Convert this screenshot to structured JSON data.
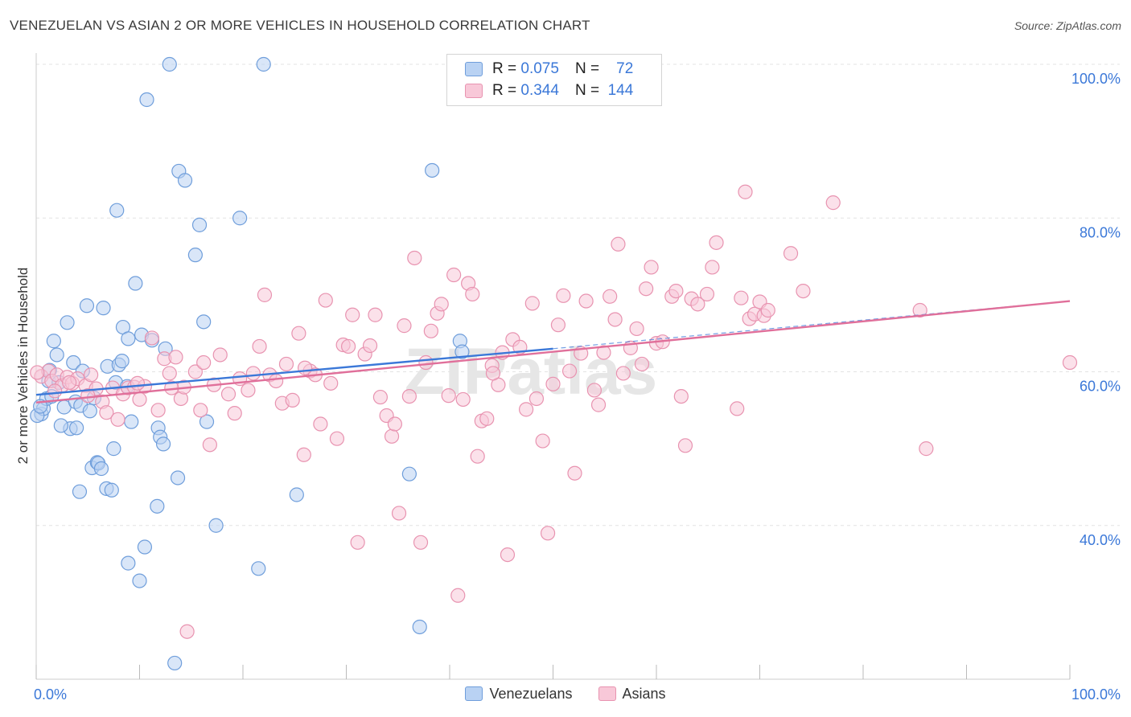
{
  "title": "VENEZUELAN VS ASIAN 2 OR MORE VEHICLES IN HOUSEHOLD CORRELATION CHART",
  "source": "Source: ZipAtlas.com",
  "watermark": "ZIPatlas",
  "legend_top": {
    "rows": [
      {
        "r_label": "R =",
        "r_value": "0.075",
        "n_label": "N =",
        "n_value": "72"
      },
      {
        "r_label": "R =",
        "r_value": "0.344",
        "n_label": "N =",
        "n_value": "144"
      }
    ]
  },
  "legend_bottom": [
    "Venezuelans",
    "Asians"
  ],
  "colors": {
    "venezuelans_fill": "#b9d2f3",
    "venezuelans_stroke": "#6f9edb",
    "venezuelans_line": "#3b78d8",
    "asians_fill": "#f8c8d8",
    "asians_stroke": "#e893b0",
    "asians_line": "#e06f9a",
    "tick_label": "#3b78d8",
    "grid": "#e3e3e3"
  },
  "chart_data": {
    "type": "scatter",
    "xlabel": "",
    "ylabel": "2 or more Vehicles in Household",
    "xlim": [
      0,
      100
    ],
    "ylim": [
      20,
      100
    ],
    "x_tick_labels": [
      "0.0%",
      "100.0%"
    ],
    "y_ticks": [
      40,
      60,
      80,
      100
    ],
    "y_tick_labels": [
      "40.0%",
      "60.0%",
      "80.0%",
      "100.0%"
    ],
    "grid": true,
    "legend_position": "top-center",
    "series": [
      {
        "name": "Venezuelans",
        "r": 0.075,
        "n": 72,
        "trend": {
          "x": [
            0,
            50
          ],
          "y": [
            57.0,
            63.0
          ],
          "dashed_to": [
            100,
            69.2
          ]
        },
        "points": [
          [
            0.5,
            54.5
          ],
          [
            0.7,
            55.2
          ],
          [
            1.0,
            56.5
          ],
          [
            1.2,
            58.8
          ],
          [
            1.3,
            60.2
          ],
          [
            1.5,
            56.8
          ],
          [
            1.7,
            64.0
          ],
          [
            2.0,
            62.2
          ],
          [
            2.2,
            58.6
          ],
          [
            2.7,
            55.4
          ],
          [
            3.0,
            66.4
          ],
          [
            3.3,
            52.6
          ],
          [
            3.6,
            61.2
          ],
          [
            3.8,
            56.1
          ],
          [
            3.9,
            52.7
          ],
          [
            4.2,
            44.4
          ],
          [
            4.3,
            55.6
          ],
          [
            4.5,
            60.1
          ],
          [
            4.9,
            68.6
          ],
          [
            5.2,
            54.9
          ],
          [
            5.4,
            47.5
          ],
          [
            5.6,
            56.6
          ],
          [
            5.9,
            48.2
          ],
          [
            6.0,
            48.1
          ],
          [
            6.5,
            68.3
          ],
          [
            6.8,
            44.8
          ],
          [
            6.9,
            60.7
          ],
          [
            7.5,
            50.0
          ],
          [
            7.7,
            58.6
          ],
          [
            7.8,
            81.0
          ],
          [
            8.0,
            60.9
          ],
          [
            8.3,
            61.4
          ],
          [
            8.4,
            65.8
          ],
          [
            8.8,
            58.1
          ],
          [
            8.9,
            35.1
          ],
          [
            8.9,
            64.3
          ],
          [
            9.2,
            53.5
          ],
          [
            9.6,
            71.5
          ],
          [
            10.2,
            64.8
          ],
          [
            10.5,
            37.2
          ],
          [
            10.7,
            95.4
          ],
          [
            11.2,
            64.1
          ],
          [
            11.7,
            42.5
          ],
          [
            11.8,
            52.7
          ],
          [
            12.0,
            51.5
          ],
          [
            12.3,
            50.6
          ],
          [
            12.9,
            100.0
          ],
          [
            13.4,
            22.1
          ],
          [
            13.7,
            46.2
          ],
          [
            13.8,
            86.1
          ],
          [
            14.4,
            84.9
          ],
          [
            15.4,
            75.2
          ],
          [
            15.8,
            79.1
          ],
          [
            16.2,
            66.5
          ],
          [
            16.5,
            53.5
          ],
          [
            17.4,
            40.0
          ],
          [
            19.7,
            80.0
          ],
          [
            21.5,
            34.4
          ],
          [
            22.0,
            100.0
          ],
          [
            25.2,
            44.0
          ],
          [
            36.1,
            46.7
          ],
          [
            37.1,
            26.8
          ],
          [
            38.3,
            86.2
          ],
          [
            41.0,
            64.0
          ],
          [
            41.2,
            62.6
          ],
          [
            0.1,
            54.3
          ],
          [
            0.4,
            55.5
          ],
          [
            2.4,
            53.0
          ],
          [
            10.0,
            32.8
          ],
          [
            6.3,
            47.4
          ],
          [
            7.3,
            44.6
          ],
          [
            12.5,
            63.0
          ]
        ]
      },
      {
        "name": "Asians",
        "r": 0.344,
        "n": 144,
        "trend": {
          "x": [
            0,
            100
          ],
          "y": [
            56.0,
            69.2
          ]
        },
        "points": [
          [
            0.5,
            59.4
          ],
          [
            1.2,
            60.1
          ],
          [
            1.5,
            58.8
          ],
          [
            2.0,
            59.6
          ],
          [
            2.5,
            58.2
          ],
          [
            3.0,
            59.3
          ],
          [
            3.5,
            58.5
          ],
          [
            4.0,
            59.1
          ],
          [
            4.8,
            58.2
          ],
          [
            5.3,
            59.6
          ],
          [
            5.8,
            57.8
          ],
          [
            6.4,
            56.1
          ],
          [
            6.8,
            54.7
          ],
          [
            7.4,
            57.9
          ],
          [
            7.9,
            53.8
          ],
          [
            8.4,
            57.1
          ],
          [
            8.9,
            57.9
          ],
          [
            9.5,
            58.0
          ],
          [
            10.0,
            56.4
          ],
          [
            10.5,
            58.1
          ],
          [
            11.2,
            64.4
          ],
          [
            11.8,
            55.0
          ],
          [
            12.4,
            61.7
          ],
          [
            12.9,
            59.8
          ],
          [
            13.5,
            61.9
          ],
          [
            14.0,
            56.5
          ],
          [
            14.3,
            58.0
          ],
          [
            14.6,
            26.2
          ],
          [
            15.4,
            60.0
          ],
          [
            15.9,
            55.0
          ],
          [
            16.2,
            61.2
          ],
          [
            16.8,
            50.5
          ],
          [
            17.2,
            58.3
          ],
          [
            17.8,
            62.2
          ],
          [
            18.6,
            57.1
          ],
          [
            19.2,
            54.6
          ],
          [
            19.7,
            59.1
          ],
          [
            20.5,
            57.6
          ],
          [
            21.0,
            59.8
          ],
          [
            21.6,
            63.3
          ],
          [
            22.1,
            70.0
          ],
          [
            22.6,
            59.6
          ],
          [
            23.2,
            58.8
          ],
          [
            23.8,
            55.9
          ],
          [
            24.2,
            61.0
          ],
          [
            24.8,
            56.3
          ],
          [
            25.4,
            65.0
          ],
          [
            25.9,
            49.2
          ],
          [
            26.5,
            60.1
          ],
          [
            27.0,
            59.6
          ],
          [
            27.5,
            53.2
          ],
          [
            28.0,
            69.3
          ],
          [
            28.5,
            58.5
          ],
          [
            29.1,
            51.3
          ],
          [
            29.7,
            63.5
          ],
          [
            30.2,
            63.3
          ],
          [
            30.6,
            67.4
          ],
          [
            31.1,
            37.8
          ],
          [
            31.8,
            62.3
          ],
          [
            32.3,
            63.4
          ],
          [
            32.8,
            67.4
          ],
          [
            33.3,
            56.7
          ],
          [
            33.9,
            54.3
          ],
          [
            34.4,
            51.6
          ],
          [
            34.7,
            53.2
          ],
          [
            35.1,
            41.6
          ],
          [
            35.6,
            66.0
          ],
          [
            36.1,
            56.8
          ],
          [
            36.6,
            74.8
          ],
          [
            37.2,
            37.8
          ],
          [
            37.7,
            61.2
          ],
          [
            38.2,
            65.3
          ],
          [
            38.8,
            67.6
          ],
          [
            39.2,
            68.8
          ],
          [
            39.9,
            56.9
          ],
          [
            40.4,
            72.6
          ],
          [
            40.8,
            30.9
          ],
          [
            41.3,
            56.4
          ],
          [
            41.8,
            71.5
          ],
          [
            42.2,
            70.1
          ],
          [
            42.7,
            49.0
          ],
          [
            43.1,
            53.6
          ],
          [
            43.6,
            53.9
          ],
          [
            44.1,
            60.8
          ],
          [
            44.7,
            58.3
          ],
          [
            45.1,
            62.5
          ],
          [
            45.6,
            36.2
          ],
          [
            46.1,
            64.2
          ],
          [
            46.8,
            63.2
          ],
          [
            47.4,
            55.1
          ],
          [
            48.0,
            68.9
          ],
          [
            48.4,
            56.5
          ],
          [
            49.0,
            51.0
          ],
          [
            49.5,
            39.0
          ],
          [
            50.0,
            58.4
          ],
          [
            50.5,
            66.1
          ],
          [
            51.0,
            69.9
          ],
          [
            51.6,
            60.1
          ],
          [
            52.1,
            46.8
          ],
          [
            52.7,
            62.4
          ],
          [
            53.2,
            69.2
          ],
          [
            54.0,
            57.6
          ],
          [
            54.4,
            55.7
          ],
          [
            54.9,
            62.5
          ],
          [
            55.5,
            69.8
          ],
          [
            56.0,
            66.8
          ],
          [
            56.3,
            76.6
          ],
          [
            56.8,
            59.8
          ],
          [
            57.5,
            63.1
          ],
          [
            58.1,
            65.6
          ],
          [
            58.6,
            61.0
          ],
          [
            59.0,
            70.8
          ],
          [
            59.5,
            73.6
          ],
          [
            60.0,
            63.7
          ],
          [
            61.5,
            69.8
          ],
          [
            61.9,
            70.5
          ],
          [
            62.4,
            56.8
          ],
          [
            62.8,
            50.4
          ],
          [
            63.4,
            69.5
          ],
          [
            64.0,
            68.8
          ],
          [
            64.9,
            70.1
          ],
          [
            65.4,
            73.6
          ],
          [
            65.8,
            76.8
          ],
          [
            67.8,
            55.2
          ],
          [
            68.2,
            69.6
          ],
          [
            68.6,
            83.4
          ],
          [
            69.0,
            66.9
          ],
          [
            69.5,
            67.5
          ],
          [
            70.0,
            69.1
          ],
          [
            70.4,
            67.3
          ],
          [
            70.8,
            68.0
          ],
          [
            73.0,
            75.4
          ],
          [
            74.2,
            70.5
          ],
          [
            77.1,
            82.0
          ],
          [
            85.5,
            68.0
          ],
          [
            86.1,
            50.0
          ],
          [
            100.0,
            61.2
          ],
          [
            0.1,
            59.9
          ],
          [
            1.8,
            57.5
          ],
          [
            3.2,
            58.6
          ],
          [
            5.0,
            56.9
          ],
          [
            9.8,
            58.5
          ],
          [
            13.1,
            57.9
          ],
          [
            26.0,
            60.5
          ],
          [
            44.2,
            59.8
          ],
          [
            60.6,
            63.9
          ]
        ]
      }
    ]
  }
}
